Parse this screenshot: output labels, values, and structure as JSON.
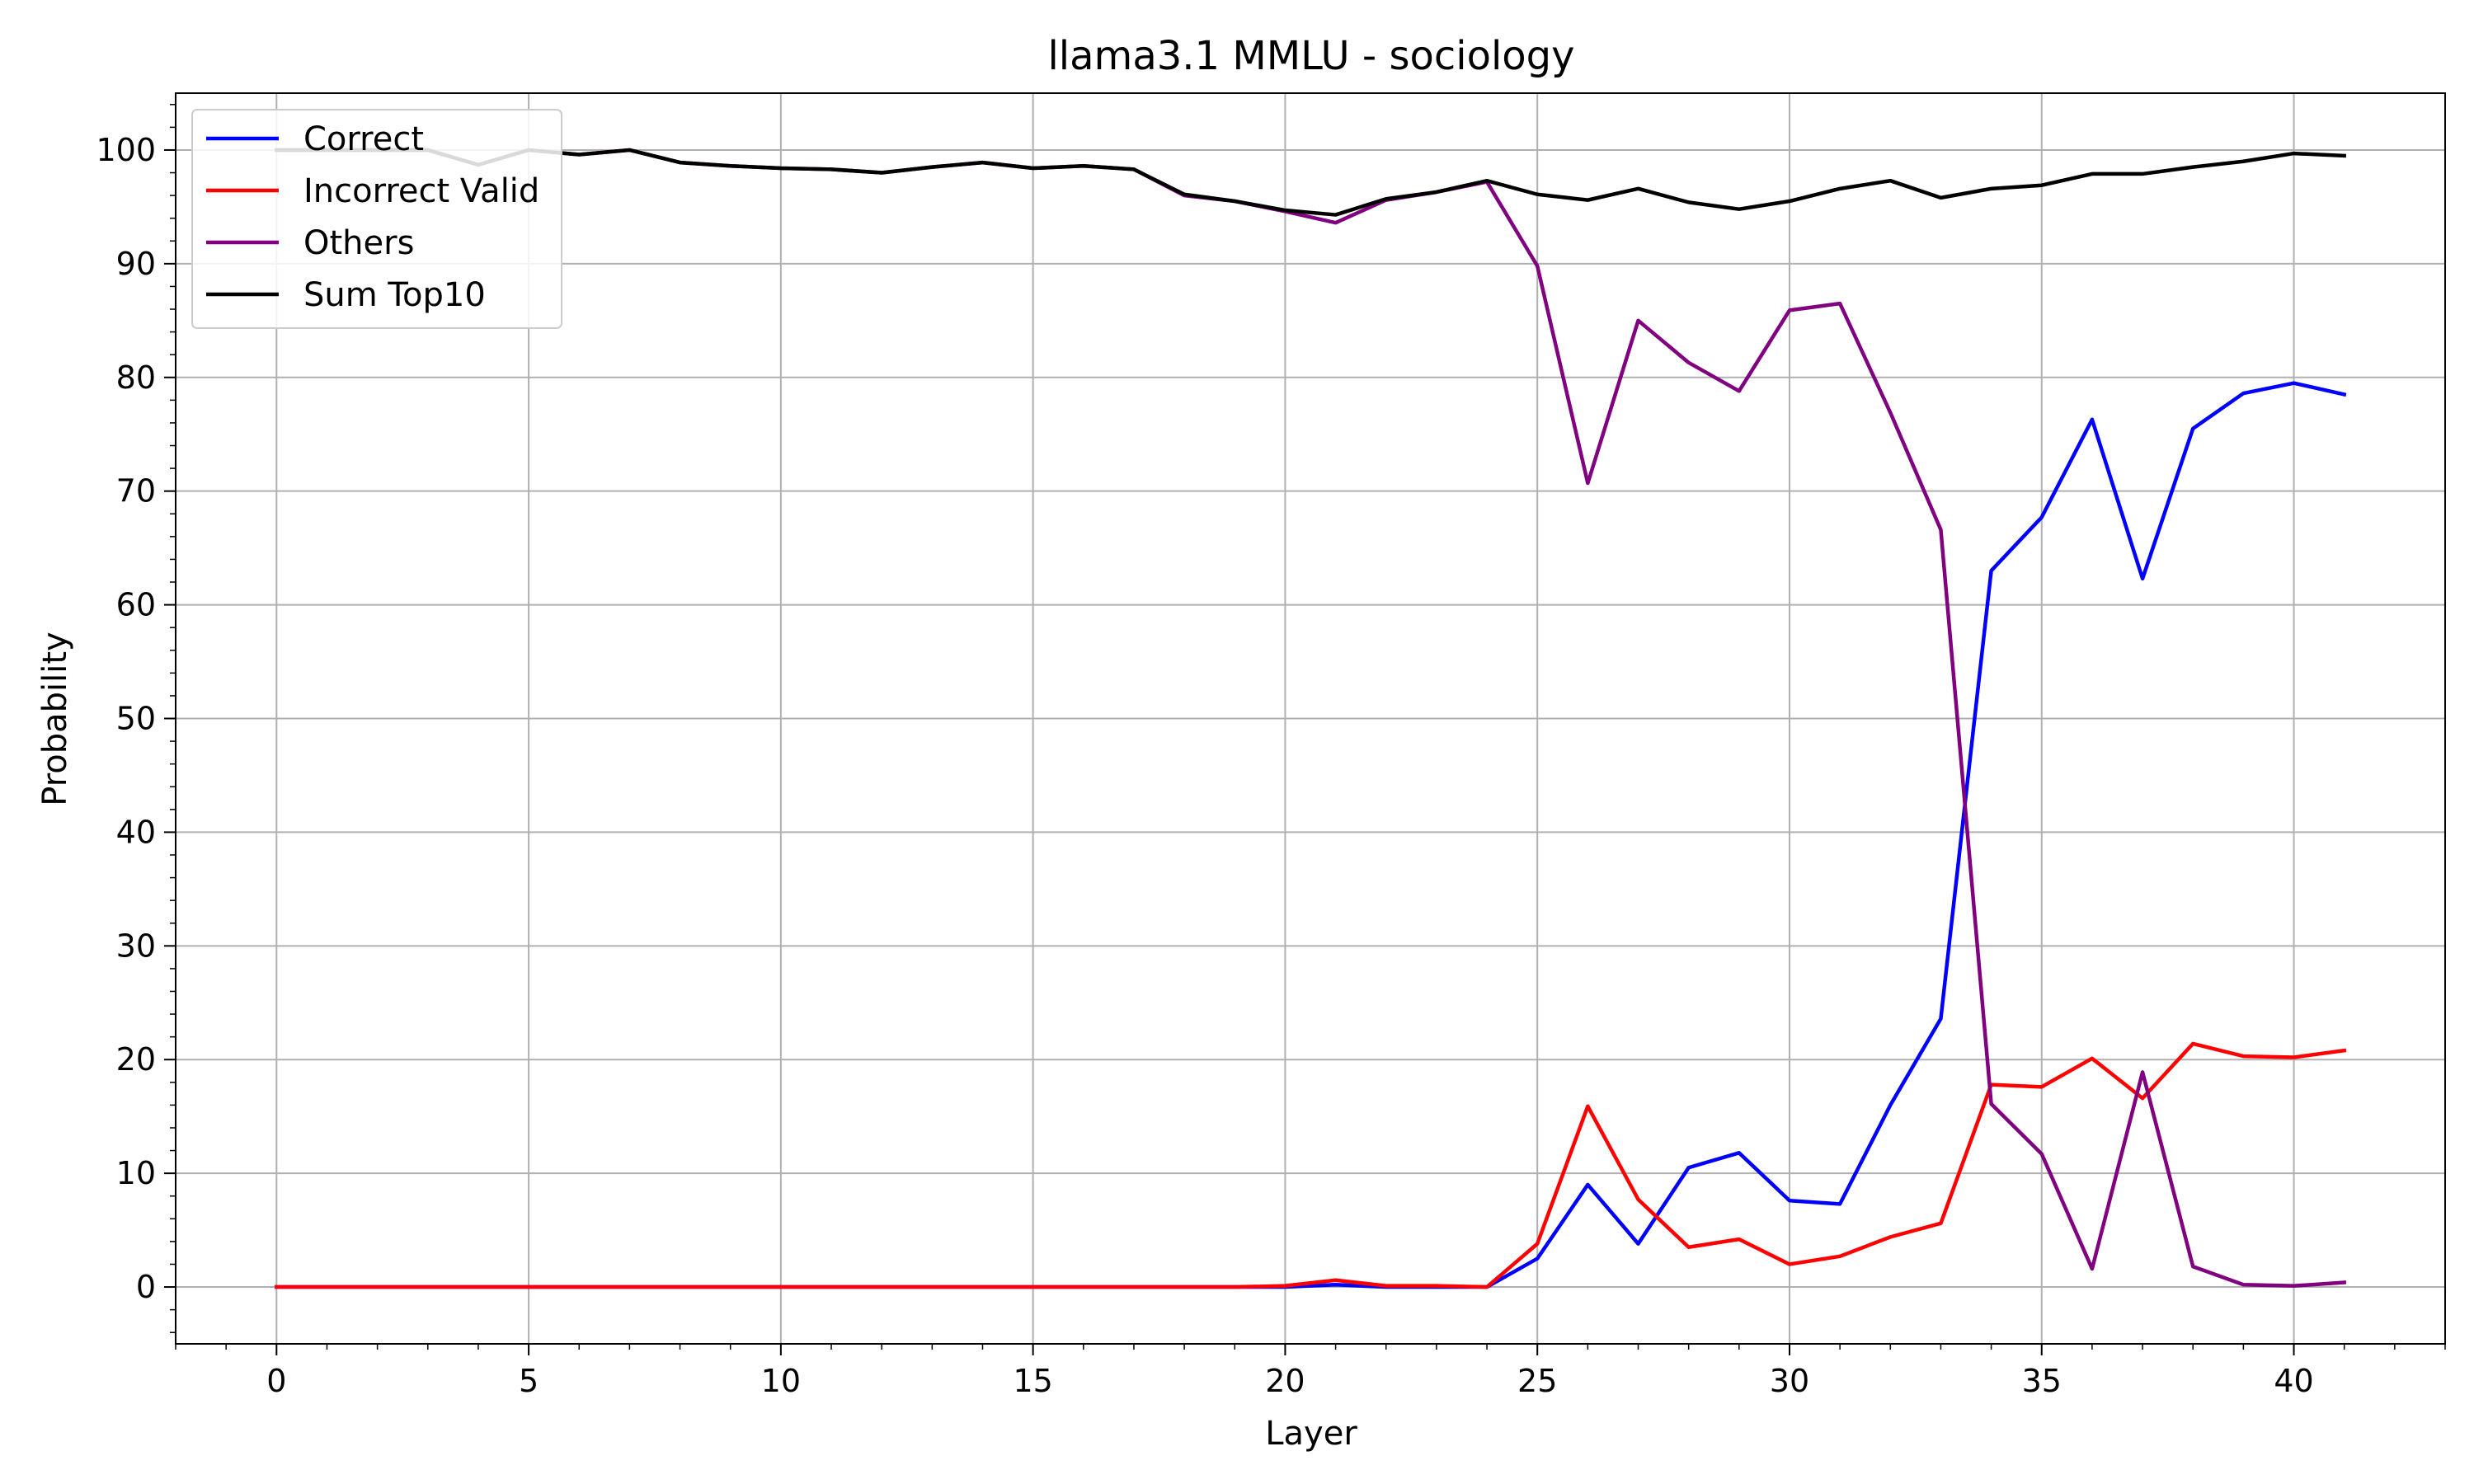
{
  "chart_data": {
    "type": "line",
    "title": "llama3.1 MMLU - sociology",
    "xlabel": "Layer",
    "ylabel": "Probability",
    "xlim": [
      -2,
      43
    ],
    "ylim": [
      -5,
      105
    ],
    "xticks": [
      0,
      5,
      10,
      15,
      20,
      25,
      30,
      35,
      40
    ],
    "yticks": [
      0,
      10,
      20,
      30,
      40,
      50,
      60,
      70,
      80,
      90,
      100
    ],
    "grid": true,
    "legend_position": "top-left",
    "x": [
      0,
      1,
      2,
      3,
      4,
      5,
      6,
      7,
      8,
      9,
      10,
      11,
      12,
      13,
      14,
      15,
      16,
      17,
      18,
      19,
      20,
      21,
      22,
      23,
      24,
      25,
      26,
      27,
      28,
      29,
      30,
      31,
      32,
      33,
      34,
      35,
      36,
      37,
      38,
      39,
      40,
      41
    ],
    "series": [
      {
        "name": "Correct",
        "color": "#0000ff",
        "values": [
          0,
          0,
          0,
          0,
          0,
          0,
          0,
          0,
          0,
          0,
          0,
          0,
          0,
          0,
          0,
          0,
          0,
          0,
          0,
          0,
          0,
          0.2,
          0,
          0,
          0,
          2.5,
          9,
          3.8,
          10.5,
          11.8,
          7.6,
          7.3,
          16,
          23.6,
          63,
          67.7,
          76.3,
          62.3,
          75.5,
          78.6,
          79.5,
          78.5
        ]
      },
      {
        "name": "Incorrect Valid",
        "color": "#ff0000",
        "values": [
          0,
          0,
          0,
          0,
          0,
          0,
          0,
          0,
          0,
          0,
          0,
          0,
          0,
          0,
          0,
          0,
          0,
          0,
          0,
          0,
          0.1,
          0.6,
          0.1,
          0.1,
          0,
          3.8,
          15.9,
          7.7,
          3.5,
          4.2,
          2,
          2.7,
          4.4,
          5.6,
          17.8,
          17.6,
          20.1,
          16.6,
          21.4,
          20.3,
          20.2,
          20.8
        ]
      },
      {
        "name": "Others",
        "color": "#800080",
        "values": [
          100,
          100,
          100,
          100,
          98.7,
          100,
          99.6,
          100,
          98.9,
          98.6,
          98.4,
          98.3,
          98,
          98.5,
          98.9,
          98.4,
          98.6,
          98.3,
          96,
          95.5,
          94.6,
          93.6,
          95.6,
          96.3,
          97.2,
          89.8,
          70.7,
          85,
          81.3,
          78.8,
          85.9,
          86.5,
          76.9,
          66.6,
          16.1,
          11.7,
          1.6,
          18.9,
          1.8,
          0.2,
          0.1,
          0.4
        ]
      },
      {
        "name": "Sum Top10",
        "color": "#000000",
        "values": [
          100,
          100,
          100,
          100,
          98.7,
          100,
          99.6,
          100,
          98.9,
          98.6,
          98.4,
          98.3,
          98,
          98.5,
          98.9,
          98.4,
          98.6,
          98.3,
          96.1,
          95.5,
          94.7,
          94.3,
          95.7,
          96.3,
          97.3,
          96.1,
          95.6,
          96.6,
          95.4,
          94.8,
          95.5,
          96.6,
          97.3,
          95.8,
          96.6,
          96.9,
          97.9,
          97.9,
          98.5,
          99,
          99.7,
          99.5
        ]
      }
    ]
  }
}
